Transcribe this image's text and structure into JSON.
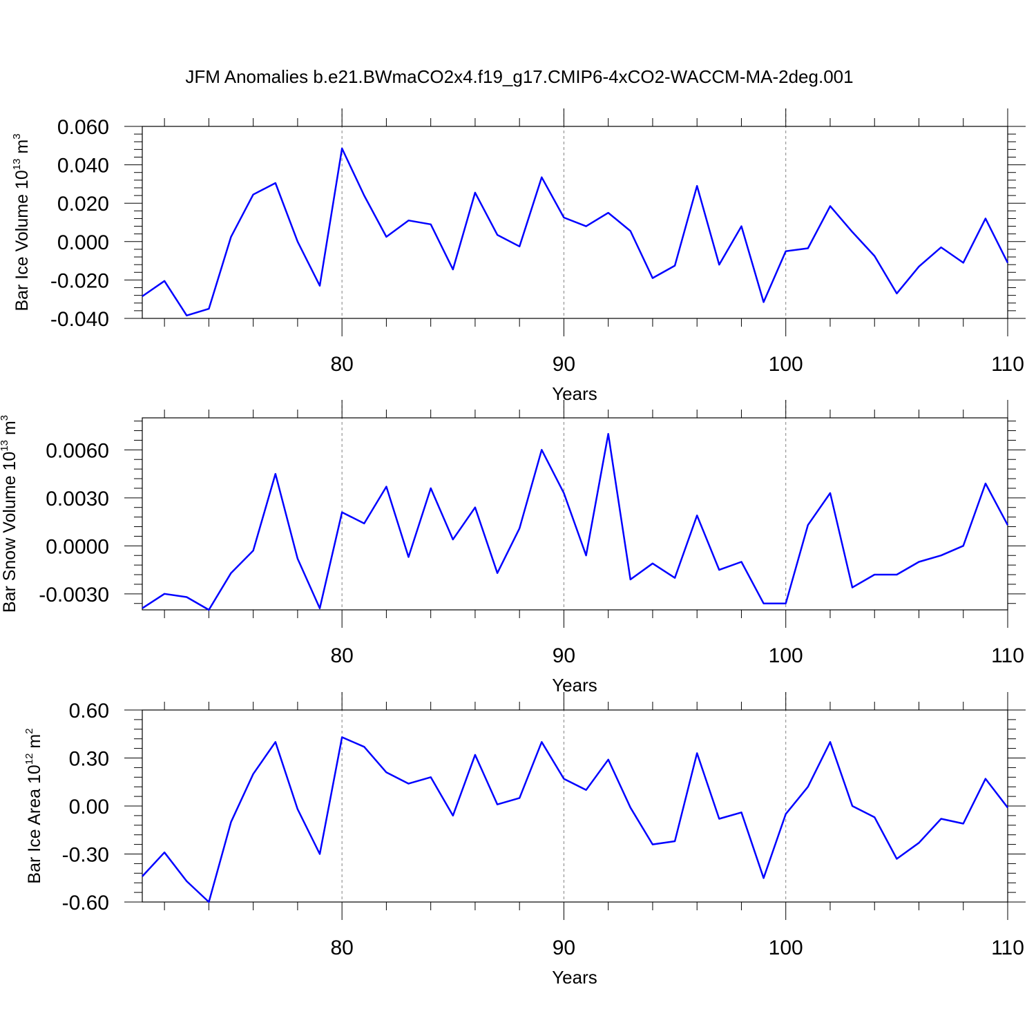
{
  "title": "JFM Anomalies b.e21.BWmaCO2x4.f19_g17.CMIP6-4xCO2-WACCM-MA-2deg.001",
  "colors": {
    "line": "#0000ff",
    "axis": "#000000",
    "grid": "#808080"
  },
  "chart_data": [
    {
      "type": "line",
      "ylabel": {
        "text": "Bar Ice Volume 10",
        "sup": "13",
        "unit": " m",
        "unit_sup": "3"
      },
      "xlabel": "Years",
      "xlim": [
        71,
        110
      ],
      "ylim": [
        -0.04,
        0.06
      ],
      "yticks": [
        -0.04,
        -0.02,
        0.0,
        0.02,
        0.04,
        0.06
      ],
      "ytick_labels": [
        "-0.040",
        "-0.020",
        "0.000",
        "0.020",
        "0.040",
        "0.060"
      ],
      "xticks": [
        80,
        90,
        100,
        110
      ],
      "xtick_labels": [
        "80",
        "90",
        "100",
        "110"
      ],
      "gridlines_x": [
        80,
        90,
        100
      ],
      "x": [
        71,
        72,
        73,
        74,
        75,
        76,
        77,
        78,
        79,
        80,
        81,
        82,
        83,
        84,
        85,
        86,
        87,
        88,
        89,
        90,
        91,
        92,
        93,
        94,
        95,
        96,
        97,
        98,
        99,
        100,
        101,
        102,
        103,
        104,
        105,
        106,
        107,
        108,
        109,
        110
      ],
      "series": [
        {
          "name": "Bar Ice Volume",
          "values": [
            -0.0285,
            -0.0205,
            -0.0385,
            -0.035,
            0.0025,
            0.0245,
            0.0305,
            0.0,
            -0.023,
            0.0485,
            0.024,
            0.0025,
            0.011,
            0.009,
            -0.0145,
            0.0255,
            0.0035,
            -0.0025,
            0.0335,
            0.0125,
            0.008,
            0.015,
            0.0055,
            -0.019,
            -0.0125,
            0.029,
            -0.012,
            0.008,
            -0.0315,
            -0.005,
            -0.0035,
            0.0185,
            0.005,
            -0.0075,
            -0.027,
            -0.013,
            -0.003,
            -0.011,
            0.012,
            -0.011
          ]
        }
      ]
    },
    {
      "type": "line",
      "ylabel": {
        "text": "Bar Snow Volume 10",
        "sup": "13",
        "unit": " m",
        "unit_sup": "3"
      },
      "xlabel": "Years",
      "xlim": [
        71,
        110
      ],
      "ylim": [
        -0.004,
        0.008
      ],
      "yticks": [
        -0.003,
        0.0,
        0.003,
        0.006
      ],
      "ytick_labels": [
        "-0.0030",
        "0.0000",
        "0.0030",
        "0.0060"
      ],
      "xticks": [
        80,
        90,
        100,
        110
      ],
      "xtick_labels": [
        "80",
        "90",
        "100",
        "110"
      ],
      "gridlines_x": [
        80,
        90,
        100
      ],
      "x": [
        71,
        72,
        73,
        74,
        75,
        76,
        77,
        78,
        79,
        80,
        81,
        82,
        83,
        84,
        85,
        86,
        87,
        88,
        89,
        90,
        91,
        92,
        93,
        94,
        95,
        96,
        97,
        98,
        99,
        100,
        101,
        102,
        103,
        104,
        105,
        106,
        107,
        108,
        109,
        110
      ],
      "series": [
        {
          "name": "Bar Snow Volume",
          "values": [
            -0.0039,
            -0.003,
            -0.0032,
            -0.004,
            -0.0017,
            -0.0003,
            0.0045,
            -0.0008,
            -0.0039,
            0.0021,
            0.0014,
            0.0037,
            -0.0007,
            0.0036,
            0.0004,
            0.0024,
            -0.0017,
            0.0011,
            0.006,
            0.0033,
            -0.0006,
            0.007,
            -0.0021,
            -0.0011,
            -0.002,
            0.0019,
            -0.0015,
            -0.001,
            -0.0036,
            -0.0036,
            0.0013,
            0.0033,
            -0.0026,
            -0.0018,
            -0.0018,
            -0.001,
            -0.0006,
            0.0,
            0.0039,
            0.0013
          ]
        }
      ]
    },
    {
      "type": "line",
      "ylabel": {
        "text": "Bar Ice Area 10",
        "sup": "12",
        "unit": " m",
        "unit_sup": "2"
      },
      "xlabel": "Years",
      "xlim": [
        71,
        110
      ],
      "ylim": [
        -0.6,
        0.6
      ],
      "yticks": [
        -0.6,
        -0.3,
        0.0,
        0.3,
        0.6
      ],
      "ytick_labels": [
        "-0.60",
        "-0.30",
        "0.00",
        "0.30",
        "0.60"
      ],
      "xticks": [
        80,
        90,
        100,
        110
      ],
      "xtick_labels": [
        "80",
        "90",
        "100",
        "110"
      ],
      "gridlines_x": [
        80,
        90,
        100
      ],
      "x": [
        71,
        72,
        73,
        74,
        75,
        76,
        77,
        78,
        79,
        80,
        81,
        82,
        83,
        84,
        85,
        86,
        87,
        88,
        89,
        90,
        91,
        92,
        93,
        94,
        95,
        96,
        97,
        98,
        99,
        100,
        101,
        102,
        103,
        104,
        105,
        106,
        107,
        108,
        109,
        110
      ],
      "series": [
        {
          "name": "Bar Ice Area",
          "values": [
            -0.44,
            -0.29,
            -0.47,
            -0.6,
            -0.1,
            0.2,
            0.4,
            -0.02,
            -0.3,
            0.43,
            0.37,
            0.21,
            0.14,
            0.18,
            -0.06,
            0.32,
            0.01,
            0.05,
            0.4,
            0.17,
            0.1,
            0.29,
            -0.01,
            -0.24,
            -0.22,
            0.33,
            -0.08,
            -0.04,
            -0.45,
            -0.05,
            0.12,
            0.4,
            0.0,
            -0.07,
            -0.33,
            -0.23,
            -0.08,
            -0.11,
            0.17,
            -0.01
          ]
        }
      ]
    }
  ]
}
